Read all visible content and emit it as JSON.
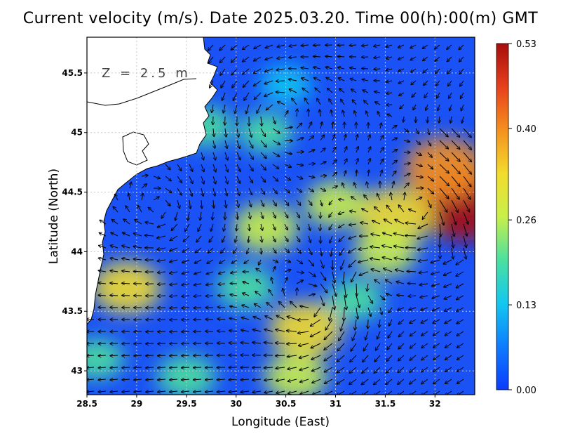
{
  "title": "Current velocity (m/s). Date 2025.03.20. Time 00(h):00(m) GMT",
  "depth_label": "Z = 2.5 m",
  "chart_data": {
    "type": "heatmap",
    "title": "Current velocity (m/s). Date 2025.03.20. Time 00(h):00(m) GMT",
    "xlabel": "Longitude (East)",
    "ylabel": "Latitude (North)",
    "xlim": [
      28.5,
      32.4
    ],
    "ylim": [
      42.8,
      45.8
    ],
    "x_ticks": [
      "28.5",
      "29",
      "29.5",
      "30",
      "30.5",
      "31",
      "31.5",
      "32"
    ],
    "y_ticks": [
      "43",
      "43.5",
      "44",
      "44.5",
      "45",
      "45.5"
    ],
    "colorbar": {
      "ticks": [
        "0.00",
        "0.13",
        "0.26",
        "0.40",
        "0.53"
      ],
      "min": 0.0,
      "max": 0.53,
      "colors": [
        "#0b3cff",
        "#0e7cff",
        "#12c8f0",
        "#4be0a0",
        "#c8f04a",
        "#f2dc2c",
        "#f5901e",
        "#e8401c",
        "#a80c0c"
      ]
    },
    "grid": true,
    "land_color": "#ffffff",
    "sea_color": "#1a52f5",
    "hotspots": [
      {
        "lon": 32.3,
        "lat": 44.4,
        "speed": 0.53
      },
      {
        "lon": 32.1,
        "lat": 44.7,
        "speed": 0.4
      },
      {
        "lon": 31.6,
        "lat": 44.3,
        "speed": 0.36
      },
      {
        "lon": 30.7,
        "lat": 43.35,
        "speed": 0.33
      },
      {
        "lon": 28.9,
        "lat": 43.7,
        "speed": 0.3
      },
      {
        "lon": 30.3,
        "lat": 44.2,
        "speed": 0.27
      },
      {
        "lon": 31.0,
        "lat": 44.4,
        "speed": 0.24
      },
      {
        "lon": 31.5,
        "lat": 44.0,
        "speed": 0.25
      },
      {
        "lon": 30.1,
        "lat": 43.7,
        "speed": 0.22
      },
      {
        "lon": 29.5,
        "lat": 42.95,
        "speed": 0.22
      },
      {
        "lon": 30.6,
        "lat": 42.95,
        "speed": 0.25
      },
      {
        "lon": 31.2,
        "lat": 43.6,
        "speed": 0.2
      },
      {
        "lon": 30.3,
        "lat": 45.0,
        "speed": 0.18
      },
      {
        "lon": 29.7,
        "lat": 45.05,
        "speed": 0.18
      },
      {
        "lon": 30.5,
        "lat": 45.4,
        "speed": 0.16
      },
      {
        "lon": 28.6,
        "lat": 43.1,
        "speed": 0.18
      }
    ]
  }
}
